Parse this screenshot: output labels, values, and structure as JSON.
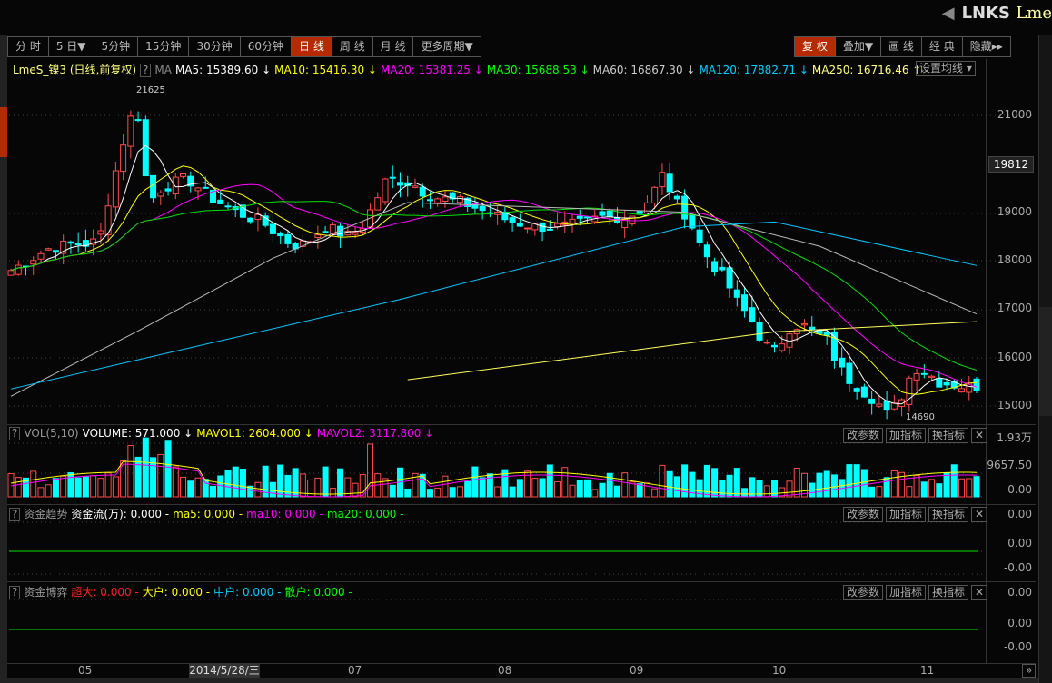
{
  "header": {
    "symbol": "LNKS",
    "name": "Lme"
  },
  "toolbar": {
    "periods": [
      "分 时",
      "5 日▼",
      "5分钟",
      "15分钟",
      "30分钟",
      "60分钟",
      "日 线",
      "周 线",
      "月 线",
      "更多周期▼"
    ],
    "active_period": 6,
    "right": [
      "复 权",
      "叠加▼",
      "画 线",
      "经 典",
      "隐藏▸▸"
    ],
    "active_right": 0
  },
  "main_legend": {
    "title": "LmeS_镍3 (日线,前复权)",
    "q": "?",
    "ma": "MA",
    "items": [
      {
        "text": "MA5: 15389.60 ↓",
        "color": "#ffffff"
      },
      {
        "text": "MA10: 15416.30 ↓",
        "color": "#ffff00"
      },
      {
        "text": "MA20: 15381.25 ↓",
        "color": "#ff00ff"
      },
      {
        "text": "MA30: 15688.53 ↓",
        "color": "#00ff00"
      },
      {
        "text": "MA60: 16867.30 ↓",
        "color": "#cccccc"
      },
      {
        "text": "MA120: 17882.71 ↓",
        "color": "#00ccff"
      },
      {
        "text": "MA250: 16716.46 ↑",
        "color": "#ffff80"
      }
    ],
    "set_ma": "设置均线 ▾"
  },
  "price_axis": {
    "labels": [
      "21000",
      "19000",
      "18000",
      "17000",
      "16000",
      "15000"
    ],
    "current": "19812"
  },
  "chart_data": {
    "type": "candlestick",
    "ylim": [
      14500,
      22000
    ],
    "closes": [
      17800,
      17950,
      18100,
      18250,
      18300,
      18350,
      18350,
      18400,
      19500,
      20500,
      21300,
      19200,
      19500,
      19600,
      19700,
      19500,
      19300,
      19150,
      19000,
      18900,
      18800,
      18600,
      18400,
      18300,
      18450,
      18700,
      18600,
      18500,
      18700,
      19200,
      19700,
      19650,
      19600,
      19400,
      19300,
      19250,
      19200,
      19100,
      19000,
      18900,
      18800,
      18750,
      18700,
      18700,
      18700,
      18750,
      18800,
      18900,
      18900,
      18900,
      19000,
      19300,
      19800,
      19200,
      18900,
      18300,
      17900,
      17600,
      17100,
      16800,
      16300,
      16100,
      16600,
      16700,
      16500,
      16400,
      15800,
      15500,
      15300,
      15100,
      14800,
      15200,
      15800,
      15700,
      15500,
      15450,
      15400,
      15400
    ],
    "high_label": "21625",
    "low_label": "14690",
    "ma_long": {
      "ma60": [
        [
          0,
          15200
        ],
        [
          17,
          16550
        ],
        [
          35,
          18050
        ],
        [
          53,
          19200
        ],
        [
          90,
          19000
        ],
        [
          108,
          18300
        ],
        [
          129,
          16900
        ]
      ],
      "ma120": [
        [
          0,
          15350
        ],
        [
          52,
          17200
        ],
        [
          90,
          18700
        ],
        [
          102,
          18800
        ],
        [
          129,
          17900
        ]
      ],
      "ma250": [
        [
          53,
          15540
        ],
        [
          102,
          16530
        ],
        [
          129,
          16740
        ]
      ]
    },
    "dates": [
      "05",
      "07",
      "08",
      "09",
      "10",
      "11"
    ],
    "cursor_date": "2014/5/28/三"
  },
  "vol": {
    "q": "?",
    "label": "VOL(5,10)",
    "items": [
      {
        "text": "VOLUME: 571.000 ↓",
        "color": "#ffffff"
      },
      {
        "text": "MAVOL1: 2604.000 ↓",
        "color": "#ffff00"
      },
      {
        "text": "MAVOL2: 3117.800 ↓",
        "color": "#ff00ff"
      }
    ],
    "axis": [
      "1.93万",
      "9657.50",
      "0.00"
    ]
  },
  "fund": {
    "q": "?",
    "label": "资金趋势",
    "items": [
      {
        "text": "资金流(万): 0.000 -",
        "color": "#ffffff"
      },
      {
        "text": "ma5: 0.000 -",
        "color": "#ffff00"
      },
      {
        "text": "ma10: 0.000 -",
        "color": "#ff00ff"
      },
      {
        "text": "ma20: 0.000 -",
        "color": "#00ff00"
      }
    ],
    "axis": [
      "0.00",
      "0.00",
      "-0.00"
    ]
  },
  "game": {
    "q": "?",
    "label": "资金博弈",
    "items": [
      {
        "text": "超大: 0.000 -",
        "color": "#ff2020"
      },
      {
        "text": "大户: 0.000 -",
        "color": "#ffff00"
      },
      {
        "text": "中户: 0.000 -",
        "color": "#00ccff"
      },
      {
        "text": "散户: 0.000 -",
        "color": "#00ff00"
      }
    ],
    "axis": [
      "0.00",
      "0.00",
      "-0.00"
    ]
  },
  "pane_buttons": [
    "改参数",
    "加指标",
    "换指标",
    "✕"
  ],
  "nav": "»",
  "colors": {
    "up": "#ff4a4a",
    "down": "#00ffff",
    "active": "#b52a00"
  }
}
